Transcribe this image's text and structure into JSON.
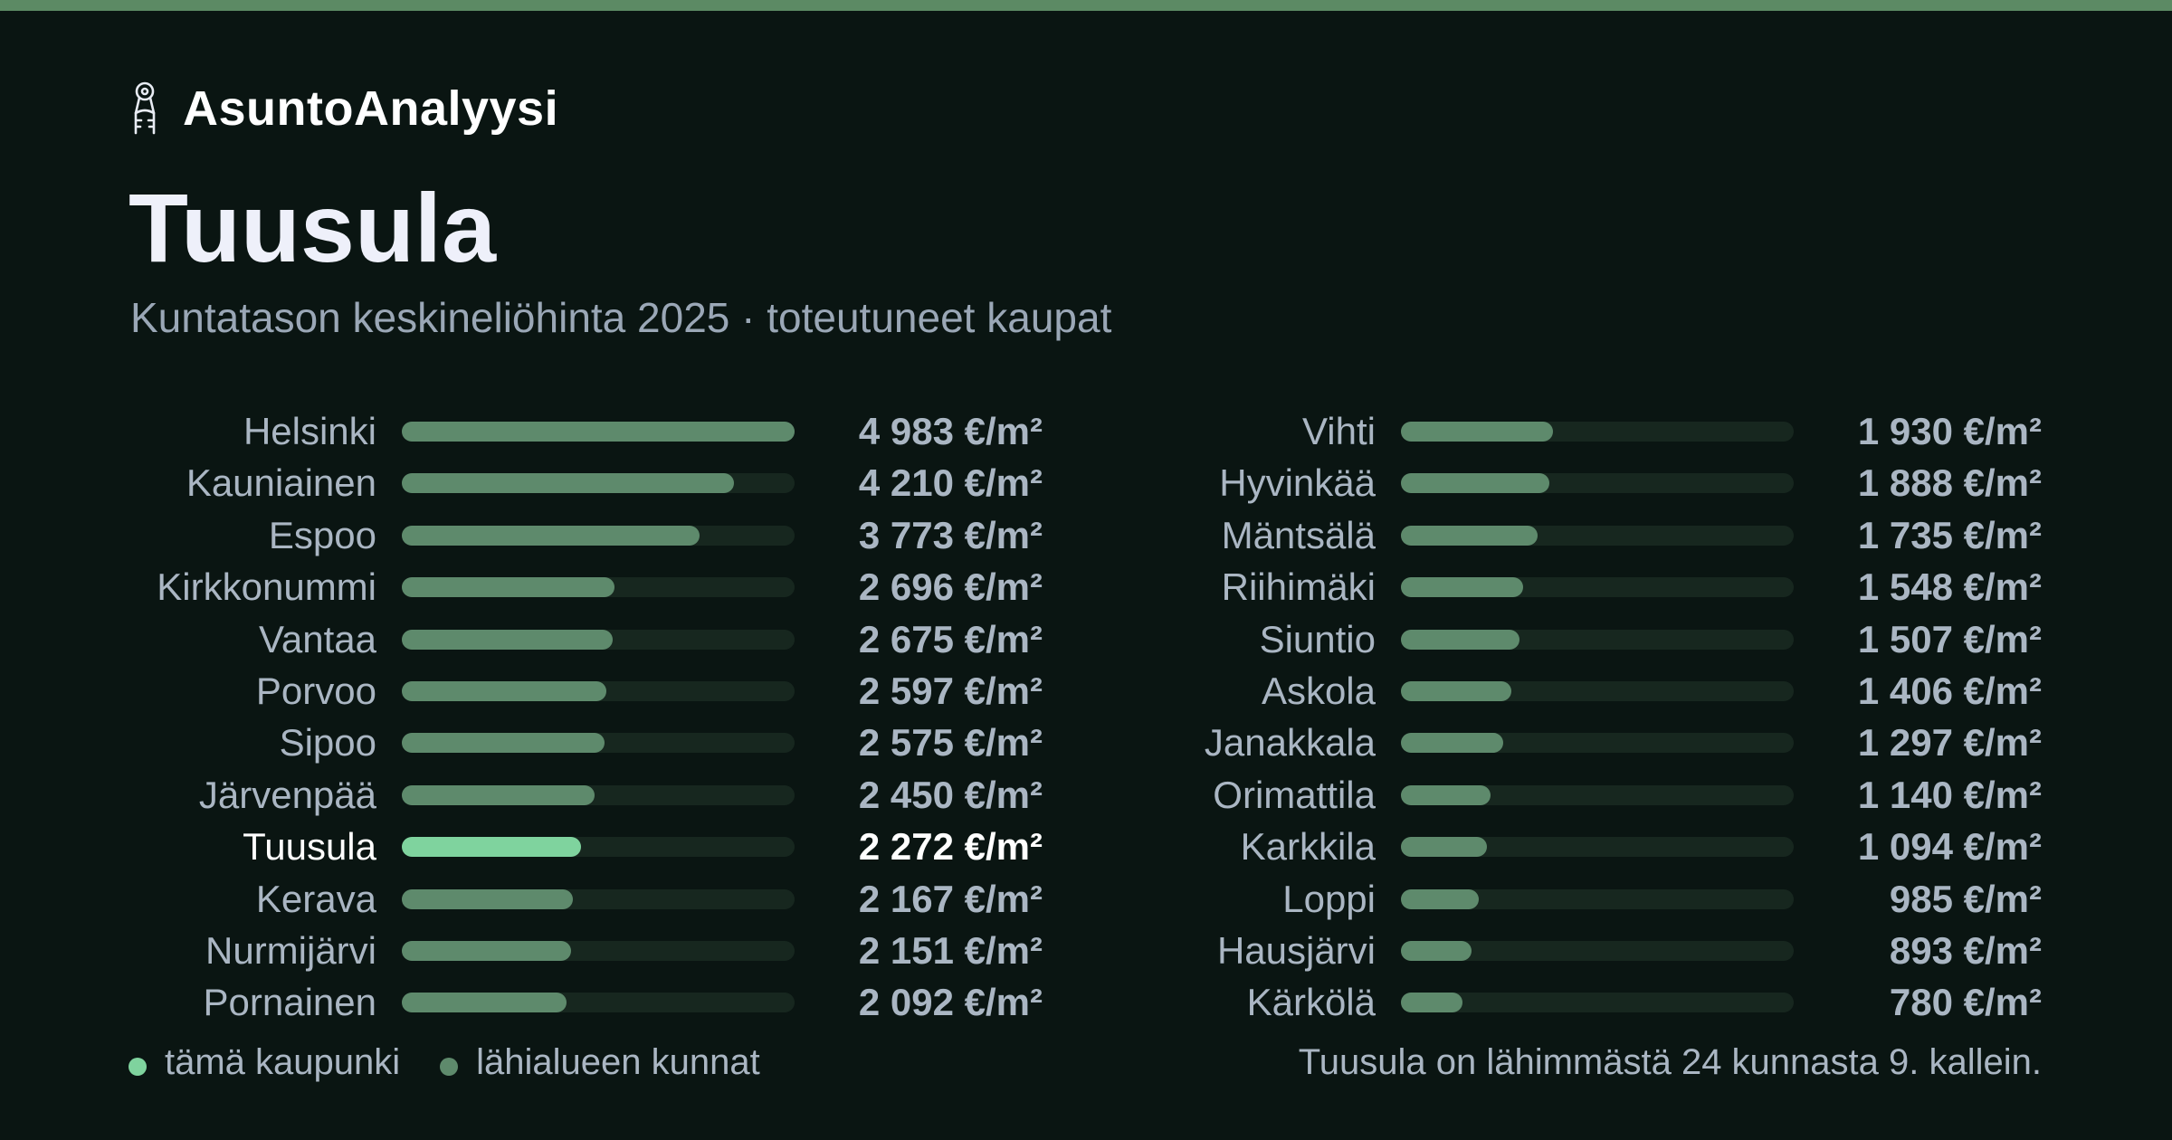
{
  "colors": {
    "background": "#0a1512",
    "accent_stripe": "#5c8a64",
    "highlight_bar": "#7fd39e",
    "regular_bar": "#5e8a6c",
    "bar_track": "#17271f"
  },
  "brand": {
    "icon": "keys-icon",
    "name": "AsuntoAnalyysi"
  },
  "title": "Tuusula",
  "subtitle": "Kuntatason keskineliöhinta 2025 · toteutuneet kaupat",
  "chart_data": {
    "type": "bar",
    "orientation": "horizontal",
    "unit": "€/m²",
    "highlight": "Tuusula",
    "xlim": [
      0,
      4983
    ],
    "grid": false,
    "categories": [
      "Helsinki",
      "Kauniainen",
      "Espoo",
      "Kirkkonummi",
      "Vantaa",
      "Porvoo",
      "Sipoo",
      "Järvenpää",
      "Tuusula",
      "Kerava",
      "Nurmijärvi",
      "Pornainen",
      "Vihti",
      "Hyvinkää",
      "Mäntsälä",
      "Riihimäki",
      "Siuntio",
      "Askola",
      "Janakkala",
      "Orimattila",
      "Karkkila",
      "Loppi",
      "Hausjärvi",
      "Kärkölä"
    ],
    "values": [
      4983,
      4210,
      3773,
      2696,
      2675,
      2597,
      2575,
      2450,
      2272,
      2167,
      2151,
      2092,
      1930,
      1888,
      1735,
      1548,
      1507,
      1406,
      1297,
      1140,
      1094,
      985,
      893,
      780
    ],
    "value_labels": [
      "4 983 €/m²",
      "4 210 €/m²",
      "3 773 €/m²",
      "2 696 €/m²",
      "2 675 €/m²",
      "2 597 €/m²",
      "2 575 €/m²",
      "2 450 €/m²",
      "2 272 €/m²",
      "2 167 €/m²",
      "2 151 €/m²",
      "2 092 €/m²",
      "1 930 €/m²",
      "1 888 €/m²",
      "1 735 €/m²",
      "1 548 €/m²",
      "1 507 €/m²",
      "1 406 €/m²",
      "1 297 €/m²",
      "1 140 €/m²",
      "1 094 €/m²",
      "985 €/m²",
      "893 €/m²",
      "780 €/m²"
    ],
    "legend": [
      {
        "label": "tämä kaupunki",
        "color": "#7fd39e"
      },
      {
        "label": "lähialueen kunnat",
        "color": "#5e8a6c"
      }
    ]
  },
  "footnote": "Tuusula on lähimmästä 24 kunnasta 9. kallein."
}
